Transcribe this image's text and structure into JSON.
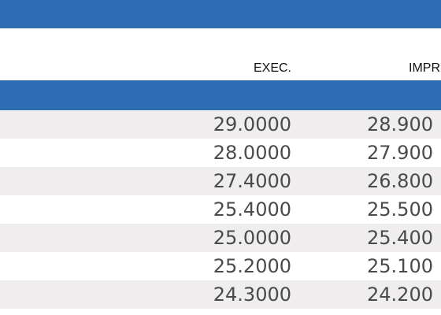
{
  "colors": {
    "header_band": "#2e6db4",
    "row_shade": "#efedee",
    "row_plain": "#ffffff",
    "text": "#4a4a4a"
  },
  "table": {
    "columns": [
      "EXEC.",
      "IMPR"
    ],
    "rows": [
      {
        "exec": "29.0000",
        "impr": "28.900"
      },
      {
        "exec": "28.0000",
        "impr": "27.900"
      },
      {
        "exec": "27.4000",
        "impr": "26.800"
      },
      {
        "exec": "25.4000",
        "impr": "25.500"
      },
      {
        "exec": "25.0000",
        "impr": "25.400"
      },
      {
        "exec": "25.2000",
        "impr": "25.100"
      },
      {
        "exec": "24.3000",
        "impr": "24.200"
      }
    ]
  }
}
